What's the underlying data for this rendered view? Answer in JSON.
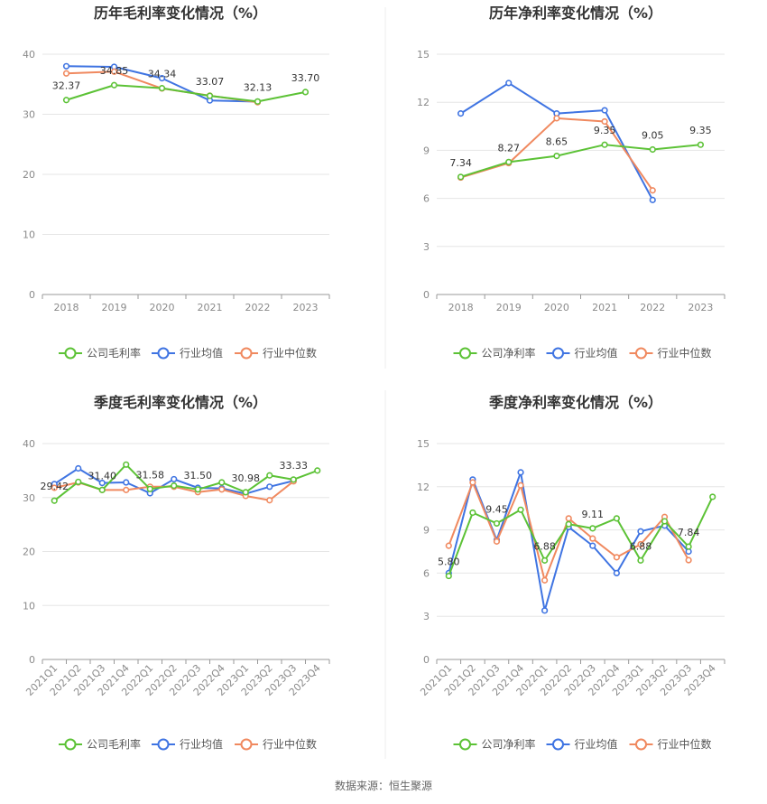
{
  "colors": {
    "company": "#5cc236",
    "industry_avg": "#3f74e2",
    "industry_median": "#f0895f",
    "grid": "#e6e6e6",
    "axis": "#999999"
  },
  "source_text": "数据来源：恒生聚源",
  "chart_data": [
    {
      "type": "line",
      "title": "历年毛利率变化情况（%）",
      "categories": [
        "2018",
        "2019",
        "2020",
        "2021",
        "2022",
        "2023"
      ],
      "ylim": [
        0,
        40
      ],
      "yticks": [
        0,
        10,
        20,
        30,
        40
      ],
      "series": [
        {
          "name": "公司毛利率",
          "role": "company",
          "values": [
            32.37,
            34.85,
            34.34,
            33.07,
            32.13,
            33.7
          ]
        },
        {
          "name": "行业均值",
          "role": "industry_avg",
          "values": [
            38.0,
            37.9,
            36.0,
            32.3,
            32.1,
            null
          ]
        },
        {
          "name": "行业中位数",
          "role": "industry_median",
          "values": [
            36.8,
            37.1,
            34.3,
            33.1,
            32.0,
            null
          ]
        }
      ],
      "data_labels": [
        "32.37",
        "34.85",
        "34.34",
        "33.07",
        "32.13",
        "33.70"
      ]
    },
    {
      "type": "line",
      "title": "历年净利率变化情况（%）",
      "categories": [
        "2018",
        "2019",
        "2020",
        "2021",
        "2022",
        "2023"
      ],
      "ylim": [
        0,
        15
      ],
      "yticks": [
        0,
        3,
        6,
        9,
        12,
        15
      ],
      "series": [
        {
          "name": "公司净利率",
          "role": "company",
          "values": [
            7.34,
            8.27,
            8.65,
            9.35,
            9.05,
            9.35
          ]
        },
        {
          "name": "行业均值",
          "role": "industry_avg",
          "values": [
            11.3,
            13.2,
            11.3,
            11.5,
            5.9,
            null
          ]
        },
        {
          "name": "行业中位数",
          "role": "industry_median",
          "values": [
            7.3,
            8.2,
            11.0,
            10.8,
            6.5,
            null
          ]
        }
      ],
      "data_labels": [
        "7.34",
        "8.27",
        "8.65",
        "9.35",
        "9.05",
        "9.35"
      ]
    },
    {
      "type": "line",
      "title": "季度毛利率变化情况（%）",
      "categories": [
        "2021Q1",
        "2021Q2",
        "2021Q3",
        "2021Q4",
        "2022Q1",
        "2022Q2",
        "2022Q3",
        "2022Q4",
        "2023Q1",
        "2023Q2",
        "2023Q3",
        "2023Q4"
      ],
      "ylim": [
        0,
        40
      ],
      "yticks": [
        0,
        10,
        20,
        30,
        40
      ],
      "series": [
        {
          "name": "公司毛利率",
          "role": "company",
          "values": [
            29.42,
            32.9,
            31.4,
            36.1,
            31.58,
            32.2,
            31.5,
            32.8,
            30.98,
            34.1,
            33.33,
            35.0
          ]
        },
        {
          "name": "行业均值",
          "role": "industry_avg",
          "values": [
            32.5,
            35.4,
            32.7,
            32.8,
            30.8,
            33.4,
            31.8,
            31.7,
            30.7,
            32.0,
            33.1,
            null
          ]
        },
        {
          "name": "行业中位数",
          "role": "industry_median",
          "values": [
            31.8,
            32.8,
            31.4,
            31.4,
            32.0,
            32.0,
            31.0,
            31.5,
            30.3,
            29.5,
            33.0,
            null
          ]
        }
      ],
      "data_labels": [
        "29.42",
        "",
        "31.40",
        "",
        "31.58",
        "",
        "31.50",
        "",
        "30.98",
        "",
        "33.33",
        ""
      ]
    },
    {
      "type": "line",
      "title": "季度净利率变化情况（%）",
      "categories": [
        "2021Q1",
        "2021Q2",
        "2021Q3",
        "2021Q4",
        "2022Q1",
        "2022Q2",
        "2022Q3",
        "2022Q4",
        "2023Q1",
        "2023Q2",
        "2023Q3",
        "2023Q4"
      ],
      "ylim": [
        0,
        15
      ],
      "yticks": [
        0,
        3,
        6,
        9,
        12,
        15
      ],
      "series": [
        {
          "name": "公司净利率",
          "role": "company",
          "values": [
            5.8,
            10.2,
            9.45,
            10.4,
            6.88,
            9.4,
            9.11,
            9.8,
            6.88,
            9.6,
            7.84,
            11.3
          ]
        },
        {
          "name": "行业均值",
          "role": "industry_avg",
          "values": [
            6.0,
            12.5,
            8.3,
            13.0,
            3.4,
            9.2,
            7.9,
            6.0,
            8.9,
            9.3,
            7.5,
            null
          ]
        },
        {
          "name": "行业中位数",
          "role": "industry_median",
          "values": [
            7.9,
            12.3,
            8.2,
            12.1,
            5.5,
            9.8,
            8.4,
            7.1,
            8.0,
            9.9,
            6.9,
            null
          ]
        }
      ],
      "data_labels": [
        "5.80",
        "",
        "9.45",
        "",
        "6.88",
        "",
        "9.11",
        "",
        "6.88",
        "",
        "7.84",
        ""
      ]
    }
  ]
}
